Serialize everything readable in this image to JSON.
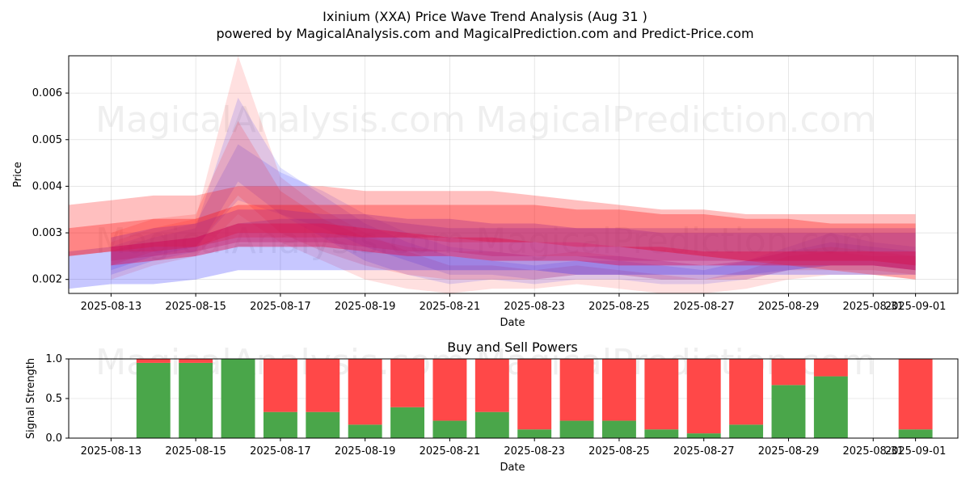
{
  "title_line1": "Ixinium (XXA) Price Wave Trend Analysis (Aug 31 )",
  "title_line2": "powered by MagicalAnalysis.com and MagicalPrediction.com and Predict-Price.com",
  "watermarks": [
    "MagicalAnalysis.com",
    "MagicalPrediction.com"
  ],
  "chart_data": [
    {
      "type": "area",
      "title": "",
      "xlabel": "Date",
      "ylabel": "Price",
      "xlim": [
        "2025-08-12",
        "2025-09-02"
      ],
      "ylim": [
        0.0017,
        0.0068
      ],
      "grid": true,
      "x_ticks": [
        "2025-08-13",
        "2025-08-15",
        "2025-08-17",
        "2025-08-19",
        "2025-08-21",
        "2025-08-23",
        "2025-08-25",
        "2025-08-27",
        "2025-08-29",
        "2025-08-31",
        "2025-09-01"
      ],
      "y_ticks": [
        0.002,
        0.003,
        0.004,
        0.005,
        0.006
      ],
      "dates": [
        "2025-08-12",
        "2025-08-13",
        "2025-08-14",
        "2025-08-15",
        "2025-08-16",
        "2025-08-17",
        "2025-08-18",
        "2025-08-19",
        "2025-08-20",
        "2025-08-21",
        "2025-08-22",
        "2025-08-23",
        "2025-08-24",
        "2025-08-25",
        "2025-08-26",
        "2025-08-27",
        "2025-08-28",
        "2025-08-29",
        "2025-08-30",
        "2025-08-31",
        "2025-09-01"
      ],
      "bands": [
        {
          "color": "#ff0000",
          "alpha": 0.12,
          "upper": [
            null,
            0.0028,
            0.0031,
            0.0033,
            0.0068,
            0.0042,
            0.0035,
            0.003,
            0.0026,
            0.0023,
            0.0023,
            0.0022,
            0.0023,
            0.0022,
            0.0021,
            0.002,
            0.0022,
            0.0025,
            0.0026,
            0.0025,
            0.0025
          ],
          "lower": [
            null,
            0.002,
            0.0023,
            0.0025,
            0.0034,
            0.0028,
            0.0024,
            0.002,
            0.0018,
            0.0017,
            0.0018,
            0.0018,
            0.0019,
            0.0018,
            0.0017,
            0.0017,
            0.0018,
            0.002,
            0.0021,
            0.0021,
            0.002
          ]
        },
        {
          "color": "#0000ff",
          "alpha": 0.12,
          "upper": [
            null,
            0.0026,
            0.0029,
            0.0031,
            0.0059,
            0.0044,
            0.0038,
            0.0032,
            0.0028,
            0.0025,
            0.0024,
            0.0023,
            0.0024,
            0.0024,
            0.0023,
            0.0022,
            0.0024,
            0.0027,
            0.003,
            0.0028,
            0.0027
          ],
          "lower": [
            null,
            0.0021,
            0.0024,
            0.0026,
            0.0041,
            0.0034,
            0.0029,
            0.0024,
            0.0021,
            0.0019,
            0.002,
            0.0019,
            0.002,
            0.002,
            0.0019,
            0.0019,
            0.002,
            0.0022,
            0.0023,
            0.0023,
            0.0022
          ]
        },
        {
          "color": "#0000ff",
          "alpha": 0.12,
          "upper": [
            null,
            0.0027,
            0.003,
            0.0032,
            0.0049,
            0.0043,
            0.0039,
            0.0034,
            0.003,
            0.0027,
            0.0026,
            0.0025,
            0.0025,
            0.0025,
            0.0024,
            0.0023,
            0.0024,
            0.0026,
            0.0028,
            0.0027,
            0.0026
          ],
          "lower": [
            null,
            0.0022,
            0.0025,
            0.0027,
            0.0037,
            0.0034,
            0.0031,
            0.0027,
            0.0024,
            0.0021,
            0.0021,
            0.002,
            0.0021,
            0.0021,
            0.002,
            0.002,
            0.0021,
            0.0022,
            0.0023,
            0.0023,
            0.0022
          ]
        },
        {
          "color": "#ff0000",
          "alpha": 0.14,
          "upper": [
            null,
            0.003,
            0.0033,
            0.0034,
            0.0054,
            0.0039,
            0.0033,
            0.0029,
            0.0027,
            0.0026,
            0.0026,
            0.0025,
            0.0026,
            0.0025,
            0.0024,
            0.0023,
            0.0024,
            0.0026,
            0.0027,
            0.0026,
            0.0025
          ],
          "lower": [
            null,
            0.0023,
            0.0026,
            0.0027,
            0.0038,
            0.003,
            0.0026,
            0.0023,
            0.0021,
            0.002,
            0.002,
            0.002,
            0.0021,
            0.0021,
            0.002,
            0.002,
            0.002,
            0.0022,
            0.0022,
            0.0022,
            0.0021
          ]
        },
        {
          "color": "#0000ff",
          "alpha": 0.22,
          "upper": [
            0.0026,
            0.0027,
            0.0028,
            0.0029,
            0.0032,
            0.0033,
            0.0033,
            0.0033,
            0.0032,
            0.0031,
            0.0031,
            0.0031,
            0.0031,
            0.0031,
            0.0031,
            0.0031,
            0.0031,
            0.0031,
            0.0031,
            0.0031,
            0.0031
          ],
          "lower": [
            0.0018,
            0.0019,
            0.0019,
            0.002,
            0.0022,
            0.0022,
            0.0022,
            0.0022,
            0.0022,
            0.0022,
            0.0022,
            0.0022,
            0.0021,
            0.0021,
            0.0021,
            0.0021,
            0.0021,
            0.0021,
            0.0021,
            0.0021,
            0.0021
          ]
        },
        {
          "color": "#ff0000",
          "alpha": 0.25,
          "upper": [
            0.0036,
            0.0037,
            0.0038,
            0.0038,
            0.004,
            0.004,
            0.004,
            0.0039,
            0.0039,
            0.0039,
            0.0039,
            0.0038,
            0.0037,
            0.0036,
            0.0035,
            0.0035,
            0.0034,
            0.0034,
            0.0034,
            0.0034,
            0.0034
          ],
          "lower": [
            0.0025,
            0.0026,
            0.0026,
            0.0027,
            0.0029,
            0.0029,
            0.0029,
            0.0029,
            0.0029,
            0.0028,
            0.0028,
            0.0028,
            0.0028,
            0.0027,
            0.0026,
            0.0025,
            0.0024,
            0.0023,
            0.0022,
            0.0021,
            0.002
          ]
        },
        {
          "color": "#ff0000",
          "alpha": 0.3,
          "upper": [
            0.0031,
            0.0032,
            0.0033,
            0.0033,
            0.0036,
            0.0036,
            0.0036,
            0.0036,
            0.0036,
            0.0036,
            0.0036,
            0.0036,
            0.0035,
            0.0035,
            0.0034,
            0.0034,
            0.0033,
            0.0033,
            0.0032,
            0.0032,
            0.0032
          ],
          "lower": [
            0.0025,
            0.0026,
            0.0027,
            0.0027,
            0.003,
            0.003,
            0.003,
            0.0029,
            0.0029,
            0.0029,
            0.0028,
            0.0028,
            0.0027,
            0.0027,
            0.0026,
            0.0025,
            0.0024,
            0.0024,
            0.0024,
            0.0024,
            0.0023
          ]
        },
        {
          "color": "#aa2a8a",
          "alpha": 0.35,
          "upper": [
            null,
            0.0029,
            0.0031,
            0.0032,
            0.0035,
            0.0035,
            0.0034,
            0.0034,
            0.0033,
            0.0033,
            0.0032,
            0.0032,
            0.0031,
            0.0031,
            0.003,
            0.003,
            0.003,
            0.003,
            0.003,
            0.003,
            0.003
          ],
          "lower": [
            null,
            0.0024,
            0.0025,
            0.0026,
            0.0028,
            0.0028,
            0.0028,
            0.0027,
            0.0026,
            0.0026,
            0.0025,
            0.0025,
            0.0025,
            0.0024,
            0.0024,
            0.0024,
            0.0024,
            0.0024,
            0.0024,
            0.0024,
            0.0023
          ]
        },
        {
          "color": "#dd1050",
          "alpha": 0.45,
          "upper": [
            null,
            0.0027,
            0.0028,
            0.0029,
            0.0032,
            0.0032,
            0.0032,
            0.0031,
            0.003,
            0.0029,
            0.0029,
            0.0028,
            0.0028,
            0.0027,
            0.0027,
            0.0026,
            0.0026,
            0.0026,
            0.0026,
            0.0026,
            0.0026
          ],
          "lower": [
            null,
            0.0023,
            0.0024,
            0.0025,
            0.0027,
            0.0027,
            0.0027,
            0.0026,
            0.0025,
            0.0025,
            0.0024,
            0.0024,
            0.0024,
            0.0023,
            0.0023,
            0.0023,
            0.0023,
            0.0023,
            0.0023,
            0.0023,
            0.0022
          ]
        }
      ]
    },
    {
      "type": "bar",
      "title": "Buy and Sell Powers",
      "xlabel": "Date",
      "ylabel": "Signal Strength",
      "xlim": [
        "2025-08-12",
        "2025-09-02"
      ],
      "ylim": [
        0,
        1.0
      ],
      "grid": true,
      "x_ticks": [
        "2025-08-13",
        "2025-08-15",
        "2025-08-17",
        "2025-08-19",
        "2025-08-21",
        "2025-08-23",
        "2025-08-25",
        "2025-08-27",
        "2025-08-29",
        "2025-08-31",
        "2025-09-01"
      ],
      "y_ticks": [
        0.0,
        0.5,
        1.0
      ],
      "series": [
        {
          "color": "#4aa64a",
          "dates": [
            "2025-08-14",
            "2025-08-15",
            "2025-08-16",
            "2025-08-17",
            "2025-08-18",
            "2025-08-19",
            "2025-08-20",
            "2025-08-21",
            "2025-08-22",
            "2025-08-23",
            "2025-08-24",
            "2025-08-25",
            "2025-08-26",
            "2025-08-27",
            "2025-08-28",
            "2025-08-29",
            "2025-08-30",
            "2025-09-01"
          ],
          "values": [
            0.95,
            0.95,
            1.0,
            0.33,
            0.33,
            0.17,
            0.39,
            0.22,
            0.33,
            0.11,
            0.22,
            0.22,
            0.11,
            0.06,
            0.17,
            0.67,
            0.78,
            0.11
          ]
        },
        {
          "color": "#ff4848",
          "dates": [
            "2025-08-14",
            "2025-08-15",
            "2025-08-16",
            "2025-08-17",
            "2025-08-18",
            "2025-08-19",
            "2025-08-20",
            "2025-08-21",
            "2025-08-22",
            "2025-08-23",
            "2025-08-24",
            "2025-08-25",
            "2025-08-26",
            "2025-08-27",
            "2025-08-28",
            "2025-08-29",
            "2025-08-30",
            "2025-09-01"
          ],
          "values": [
            0.05,
            0.05,
            0.0,
            0.67,
            0.67,
            0.83,
            0.61,
            0.78,
            0.67,
            0.89,
            0.78,
            0.78,
            0.89,
            0.94,
            0.83,
            0.33,
            0.22,
            0.89
          ]
        }
      ]
    }
  ]
}
